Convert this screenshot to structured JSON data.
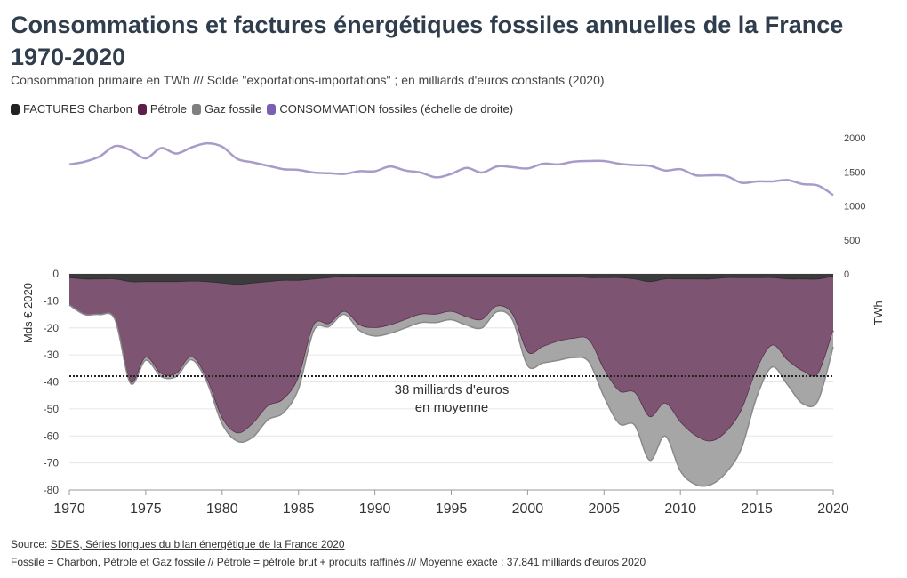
{
  "header": {
    "title": "Consommations et factures énergétiques fossiles annuelles de la France 1970-2020",
    "subtitle": "Consommation primaire en TWh /// Solde \"exportations-importations\" ; en milliards d'euros constants (2020)"
  },
  "footer": {
    "source_prefix": "Source: ",
    "source_link": "SDES, Séries longues du bilan énergétique de la France 2020",
    "note": "Fossile = Charbon, Pétrole et Gaz fossile // Pétrole = pétrole brut + produits raffinés /// Moyenne exacte : 37.841 milliards d'euros 2020"
  },
  "chart_data": {
    "type": "area",
    "x": [
      1970,
      1971,
      1972,
      1973,
      1974,
      1975,
      1976,
      1977,
      1978,
      1979,
      1980,
      1981,
      1982,
      1983,
      1984,
      1985,
      1986,
      1987,
      1988,
      1989,
      1990,
      1991,
      1992,
      1993,
      1994,
      1995,
      1996,
      1997,
      1998,
      1999,
      2000,
      2001,
      2002,
      2003,
      2004,
      2005,
      2006,
      2007,
      2008,
      2009,
      2010,
      2011,
      2012,
      2013,
      2014,
      2015,
      2016,
      2017,
      2018,
      2019,
      2020
    ],
    "xlim": [
      1970,
      2020
    ],
    "x_ticks": [
      1970,
      1975,
      1980,
      1985,
      1990,
      1995,
      2000,
      2005,
      2010,
      2015,
      2020
    ],
    "ylim_left": [
      -80,
      0
    ],
    "y_ticks_left": [
      0,
      -10,
      -20,
      -30,
      -40,
      -50,
      -60,
      -70,
      -80
    ],
    "ylabel_left": "Mds € 2020",
    "ylim_right": [
      0,
      2000
    ],
    "y_ticks_right": [
      2000,
      1500,
      1000,
      500,
      0
    ],
    "ylabel_right": "TWh",
    "series": [
      {
        "name": "FACTURES Charbon",
        "color": "#2b2b2b",
        "stack": "left",
        "values": [
          -1.5,
          -2,
          -2,
          -2,
          -3,
          -3,
          -3,
          -3,
          -2.8,
          -3,
          -3.5,
          -4,
          -3.5,
          -3,
          -2.5,
          -2.5,
          -2,
          -1.5,
          -1,
          -1,
          -1,
          -1,
          -1,
          -1,
          -1,
          -1,
          -1,
          -1,
          -1,
          -1,
          -1,
          -1,
          -1,
          -1,
          -1.5,
          -1.5,
          -1.5,
          -2,
          -3,
          -2,
          -2,
          -2,
          -2,
          -1.5,
          -1.5,
          -1.5,
          -1.5,
          -2,
          -2,
          -2,
          -1
        ]
      },
      {
        "name": "Pétrole",
        "color": "#6e3a5c",
        "stack": "left",
        "values": [
          -10,
          -13,
          -13,
          -15,
          -37,
          -28,
          -34,
          -34,
          -28,
          -36,
          -50,
          -55,
          -52,
          -46,
          -44,
          -36,
          -17,
          -17,
          -13,
          -18,
          -19,
          -18,
          -16,
          -14,
          -14,
          -13,
          -15,
          -16,
          -11,
          -14,
          -28,
          -26,
          -24,
          -23,
          -23,
          -34,
          -42,
          -42,
          -50,
          -46,
          -53,
          -58,
          -60,
          -57,
          -49,
          -34,
          -25,
          -30,
          -34,
          -35,
          -20
        ]
      },
      {
        "name": "Gaz fossile",
        "color": "#8c8c8c",
        "stack": "left",
        "values": [
          0,
          0,
          0,
          0,
          -0.5,
          -1,
          -1,
          -1,
          -1,
          -1,
          -2,
          -3,
          -5,
          -5,
          -5,
          -4,
          -2,
          -1,
          -1,
          -2,
          -3,
          -3,
          -3,
          -3,
          -3,
          -3,
          -3,
          -3,
          -2,
          -2,
          -5,
          -6,
          -7,
          -7,
          -8,
          -10,
          -12,
          -12,
          -16,
          -12,
          -18,
          -18,
          -16,
          -15,
          -14,
          -10,
          -8,
          -9,
          -12,
          -10,
          -6
        ]
      },
      {
        "name": "CONSOMMATION fossiles (échelle de droite)",
        "color": "#a99bc9",
        "axis": "right",
        "values": [
          1610,
          1650,
          1730,
          1880,
          1820,
          1700,
          1850,
          1770,
          1860,
          1920,
          1870,
          1690,
          1640,
          1590,
          1540,
          1530,
          1490,
          1480,
          1470,
          1510,
          1510,
          1580,
          1520,
          1490,
          1420,
          1470,
          1560,
          1490,
          1580,
          1570,
          1550,
          1620,
          1610,
          1650,
          1660,
          1660,
          1620,
          1600,
          1590,
          1520,
          1540,
          1450,
          1450,
          1440,
          1340,
          1360,
          1360,
          1380,
          1320,
          1300,
          1160
        ]
      }
    ],
    "average": {
      "value": -37.841,
      "label_line1": "38 milliards d'euros",
      "label_line2": "en moyenne"
    }
  },
  "legend_colors": {
    "charbon": "#222222",
    "petrole": "#5c1f4a",
    "gaz": "#7f7f7f",
    "conso": "#7b5fb3"
  }
}
